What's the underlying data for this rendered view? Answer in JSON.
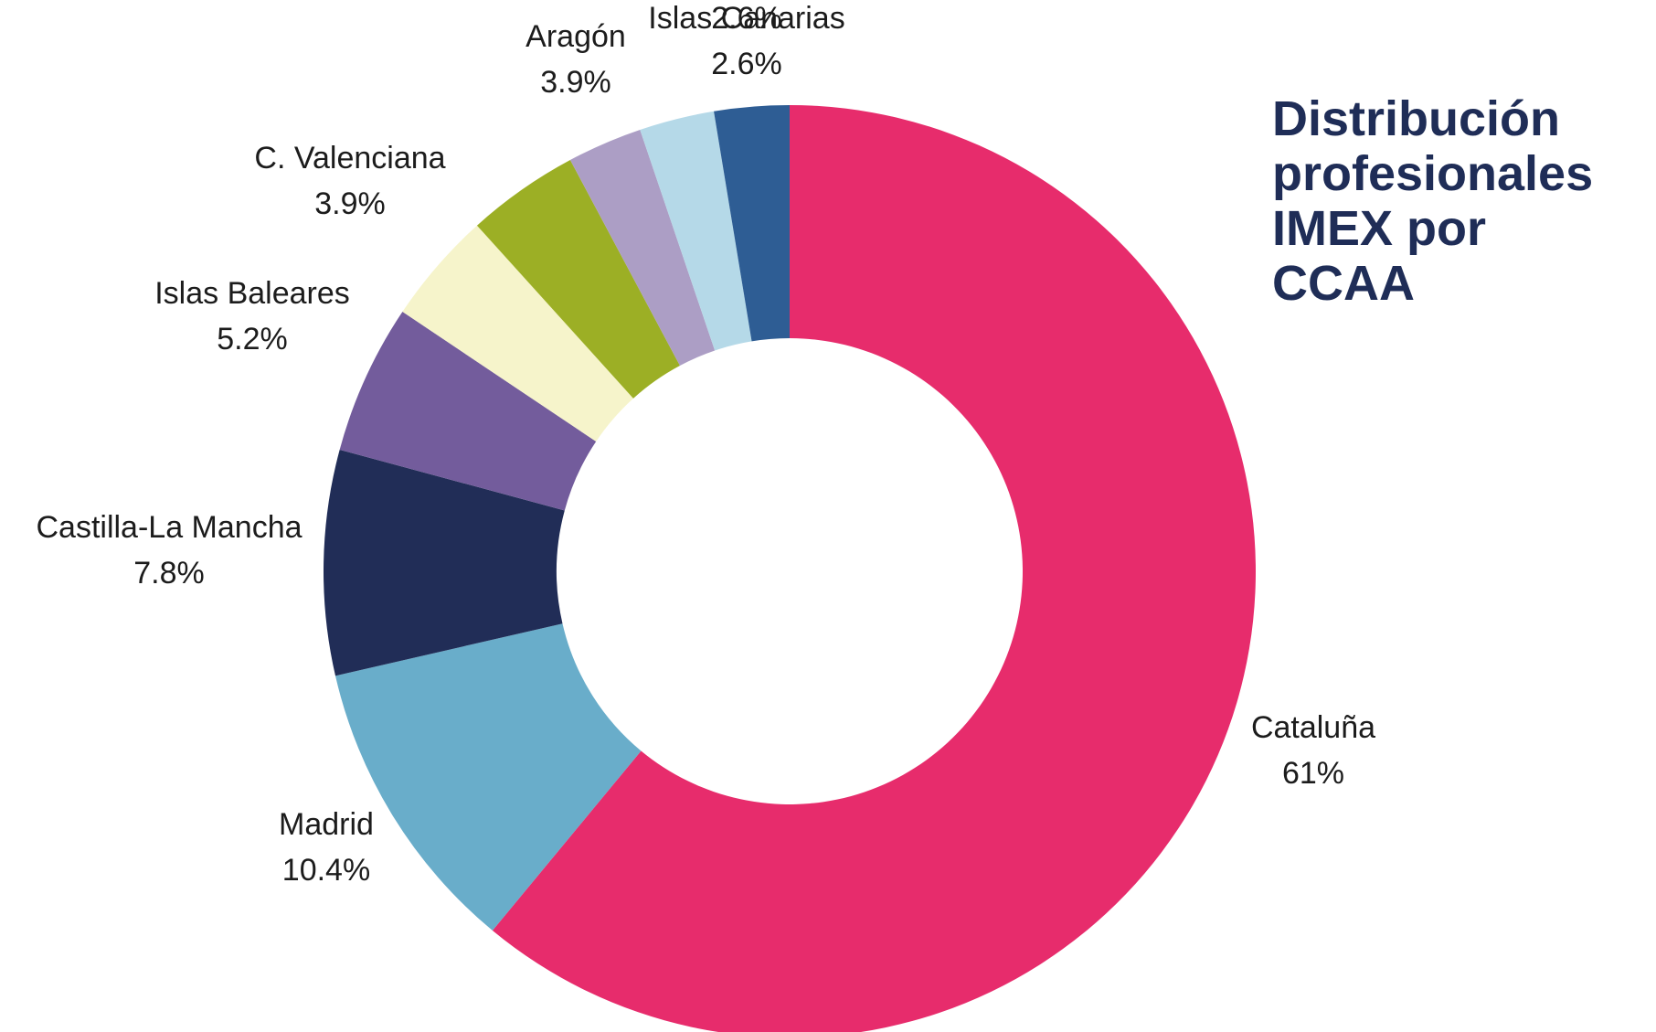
{
  "chart_data": {
    "type": "pie",
    "variant": "donut",
    "title": "Distribución\nprofesionales\nIMEX por CCAA",
    "start": "top, clockwise",
    "slices": [
      {
        "label": "Cataluña",
        "value": 61,
        "value_label": "61%",
        "color": "#E72C6C"
      },
      {
        "label": "Madrid",
        "value": 10.4,
        "value_label": "10.4%",
        "color": "#69ADCA"
      },
      {
        "label": "Castilla-La Mancha",
        "value": 7.8,
        "value_label": "7.8%",
        "color": "#212D57"
      },
      {
        "label": "Islas Baleares",
        "value": 5.2,
        "value_label": "5.2%",
        "color": "#735C9C"
      },
      {
        "label": "C. Valenciana",
        "value": 3.9,
        "value_label": "3.9%",
        "color": "#F6F4CB"
      },
      {
        "label": "Aragón",
        "value": 3.9,
        "value_label": "3.9%",
        "color": "#9CAF25"
      },
      {
        "label": "Islas Canarias",
        "value": 2.6,
        "value_label": "2.6%",
        "color": "#AC9EC5"
      },
      {
        "label": "",
        "value": 2.6,
        "value_label": "2.6%",
        "color": "#B5D9E8"
      },
      {
        "label": "",
        "value": 2.6,
        "value_label": "",
        "color": "#2E5D94"
      }
    ]
  }
}
